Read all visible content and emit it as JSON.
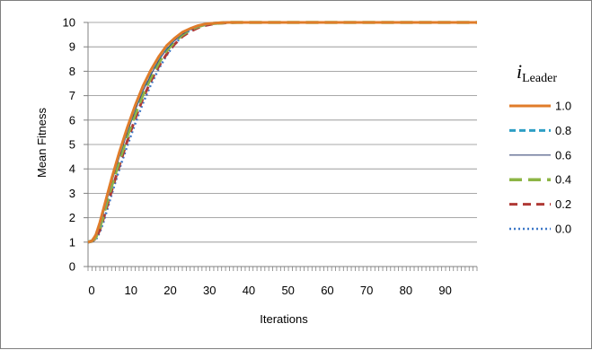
{
  "chart_data": {
    "type": "line",
    "title": "",
    "xlabel": "Iterations",
    "ylabel": "Mean Fitness",
    "xlim": [
      0,
      99
    ],
    "ylim": [
      0,
      10
    ],
    "xticks": [
      0,
      10,
      20,
      30,
      40,
      50,
      60,
      70,
      80,
      90
    ],
    "yticks": [
      0,
      1,
      2,
      3,
      4,
      5,
      6,
      7,
      8,
      9,
      10
    ],
    "grid": "horizontal",
    "legend": {
      "placement": "right",
      "title_main": "i",
      "title_sub": "Leader"
    },
    "x": [
      0,
      1,
      2,
      3,
      4,
      5,
      6,
      8,
      10,
      12,
      14,
      16,
      18,
      20,
      22,
      24,
      26,
      28,
      30,
      32,
      34,
      36,
      38,
      40,
      45,
      50,
      60,
      70,
      80,
      90,
      99
    ],
    "series": [
      {
        "name": "1.0",
        "color": "#e07c2a",
        "style": "solid",
        "values": [
          1.0,
          1.05,
          1.3,
          1.8,
          2.4,
          3.0,
          3.6,
          4.7,
          5.7,
          6.6,
          7.4,
          8.05,
          8.6,
          9.05,
          9.35,
          9.6,
          9.75,
          9.87,
          9.94,
          9.97,
          9.99,
          10,
          10,
          10,
          10,
          10,
          10,
          10,
          10,
          10,
          10
        ]
      },
      {
        "name": "0.8",
        "color": "#2e9fc5",
        "style": "dashed",
        "values": [
          1.0,
          1.05,
          1.3,
          1.75,
          2.35,
          2.95,
          3.55,
          4.65,
          5.65,
          6.55,
          7.35,
          8.0,
          8.55,
          9.0,
          9.33,
          9.58,
          9.74,
          9.86,
          9.93,
          9.97,
          9.99,
          10,
          10,
          10,
          10,
          10,
          10,
          10,
          10,
          10,
          10
        ]
      },
      {
        "name": "0.6",
        "color": "#3f4d7a",
        "style": "solid-thin",
        "values": [
          1.0,
          1.05,
          1.25,
          1.7,
          2.25,
          2.85,
          3.45,
          4.5,
          5.5,
          6.4,
          7.2,
          7.85,
          8.45,
          8.9,
          9.25,
          9.52,
          9.7,
          9.83,
          9.92,
          9.96,
          9.98,
          10,
          10,
          10,
          10,
          10,
          10,
          10,
          10,
          10,
          10
        ]
      },
      {
        "name": "0.4",
        "color": "#8db545",
        "style": "long-dash",
        "values": [
          1.0,
          1.05,
          1.2,
          1.6,
          2.15,
          2.75,
          3.3,
          4.35,
          5.35,
          6.25,
          7.05,
          7.75,
          8.35,
          8.85,
          9.2,
          9.5,
          9.7,
          9.83,
          9.92,
          9.96,
          9.98,
          10,
          10,
          10,
          10,
          10,
          10,
          10,
          10,
          10,
          10
        ]
      },
      {
        "name": "0.2",
        "color": "#b03a36",
        "style": "dash",
        "values": [
          1.0,
          1.03,
          1.15,
          1.5,
          2.0,
          2.55,
          3.1,
          4.15,
          5.15,
          6.05,
          6.9,
          7.6,
          8.2,
          8.7,
          9.1,
          9.42,
          9.63,
          9.78,
          9.88,
          9.94,
          9.97,
          9.99,
          10,
          10,
          10,
          10,
          10,
          10,
          10,
          10,
          10
        ]
      },
      {
        "name": "0.0",
        "color": "#3d78c7",
        "style": "dotted",
        "values": [
          1.0,
          1.02,
          1.1,
          1.4,
          1.85,
          2.4,
          2.95,
          4.0,
          4.95,
          5.85,
          6.7,
          7.45,
          8.1,
          8.65,
          9.1,
          9.45,
          9.68,
          9.82,
          9.91,
          9.96,
          9.98,
          10,
          10,
          10,
          10,
          10,
          10,
          10,
          10,
          10,
          10
        ]
      }
    ]
  }
}
